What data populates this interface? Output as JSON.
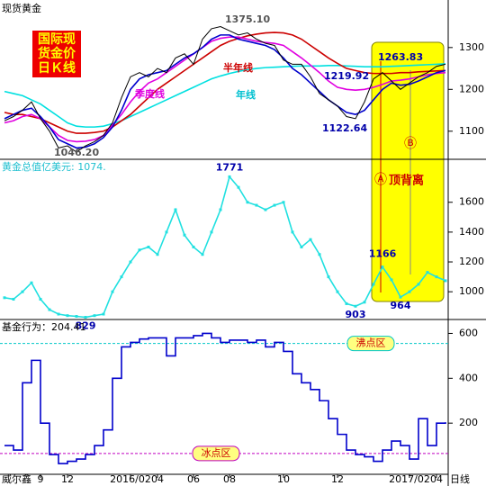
{
  "chart_data": [
    {
      "type": "line",
      "title": "现货黄金",
      "ylim": [
        1035,
        1405
      ],
      "yticks": [
        1100,
        1200,
        1300
      ],
      "series": [
        {
          "name": "年线",
          "color": "#00e0e0",
          "values": [
            1195,
            1190,
            1185,
            1175,
            1165,
            1150,
            1135,
            1120,
            1112,
            1110,
            1110,
            1112,
            1118,
            1125,
            1135,
            1145,
            1155,
            1165,
            1175,
            1185,
            1195,
            1205,
            1215,
            1225,
            1232,
            1238,
            1243,
            1247,
            1250,
            1252,
            1253,
            1254,
            1255,
            1256,
            1256,
            1256,
            1257,
            1257,
            1256,
            1255,
            1254,
            1254,
            1254,
            1255,
            1256,
            1257,
            1258,
            1259,
            1260,
            1261
          ]
        },
        {
          "name": "半年线",
          "color": "#cc0000",
          "values": [
            1145,
            1140,
            1140,
            1135,
            1130,
            1120,
            1110,
            1100,
            1095,
            1095,
            1097,
            1100,
            1110,
            1125,
            1140,
            1160,
            1180,
            1200,
            1215,
            1230,
            1245,
            1260,
            1275,
            1290,
            1305,
            1315,
            1322,
            1328,
            1332,
            1335,
            1336,
            1335,
            1330,
            1320,
            1305,
            1290,
            1275,
            1262,
            1250,
            1245,
            1240,
            1238,
            1238,
            1238,
            1240,
            1240,
            1242,
            1243,
            1244,
            1245
          ]
        },
        {
          "name": "季度线",
          "color": "#e000e0",
          "values": [
            1120,
            1125,
            1135,
            1140,
            1130,
            1110,
            1090,
            1078,
            1075,
            1076,
            1080,
            1090,
            1115,
            1140,
            1170,
            1195,
            1215,
            1225,
            1240,
            1255,
            1270,
            1285,
            1300,
            1315,
            1322,
            1325,
            1325,
            1320,
            1315,
            1312,
            1310,
            1305,
            1290,
            1275,
            1258,
            1240,
            1220,
            1205,
            1200,
            1198,
            1200,
            1205,
            1212,
            1220,
            1222,
            1225,
            1230,
            1235,
            1238,
            1240
          ]
        },
        {
          "color": "#0000cc",
          "values": [
            1130,
            1140,
            1150,
            1155,
            1135,
            1110,
            1080,
            1070,
            1060,
            1062,
            1070,
            1085,
            1110,
            1150,
            1200,
            1225,
            1235,
            1240,
            1245,
            1260,
            1275,
            1285,
            1300,
            1320,
            1330,
            1330,
            1320,
            1315,
            1310,
            1305,
            1295,
            1275,
            1250,
            1235,
            1215,
            1195,
            1175,
            1160,
            1145,
            1140,
            1150,
            1175,
            1200,
            1215,
            1210,
            1212,
            1220,
            1230,
            1240,
            1245
          ]
        },
        {
          "color": "#000000",
          "values": [
            1125,
            1135,
            1150,
            1170,
            1130,
            1100,
            1060,
            1065,
            1050,
            1065,
            1075,
            1090,
            1120,
            1180,
            1230,
            1240,
            1230,
            1250,
            1240,
            1275,
            1285,
            1260,
            1320,
            1345,
            1350,
            1340,
            1330,
            1335,
            1320,
            1310,
            1305,
            1270,
            1260,
            1260,
            1230,
            1190,
            1175,
            1160,
            1135,
            1130,
            1170,
            1225,
            1240,
            1220,
            1200,
            1215,
            1230,
            1240,
            1255,
            1260
          ]
        }
      ],
      "annotations": [
        "1375.10",
        "1046.20",
        "1122.64",
        "1219.92",
        "1263.83",
        "半年线",
        "季度线",
        "年线"
      ],
      "badge": [
        "国际现",
        "货金价",
        "日Ｋ线"
      ]
    },
    {
      "type": "line",
      "title": "黄金总值亿美元: 1074.",
      "ylim": [
        820,
        1870
      ],
      "yticks": [
        1000,
        1200,
        1400,
        1600
      ],
      "series": [
        {
          "color": "#20e0e0",
          "values": [
            960,
            950,
            1000,
            1060,
            950,
            880,
            850,
            840,
            835,
            829,
            840,
            850,
            1000,
            1100,
            1200,
            1280,
            1300,
            1250,
            1400,
            1550,
            1380,
            1300,
            1250,
            1400,
            1550,
            1771,
            1700,
            1600,
            1580,
            1550,
            1580,
            1600,
            1400,
            1300,
            1350,
            1250,
            1100,
            1000,
            920,
            903,
            930,
            1050,
            1166,
            1080,
            964,
            1000,
            1050,
            1130,
            1100,
            1074
          ]
        }
      ],
      "value_label_points": [
        9,
        25,
        39,
        42,
        44
      ]
    },
    {
      "type": "step",
      "title": "基金行为：204.41",
      "ylim": [
        -20,
        650
      ],
      "yticks": [
        200,
        400,
        600
      ],
      "categories": [
        null,
        null,
        null,
        null,
        "9",
        null,
        null,
        "12",
        null,
        null,
        null,
        null,
        null,
        null,
        "2016/02",
        null,
        null,
        "04",
        null,
        null,
        null,
        "06",
        null,
        null,
        null,
        "08",
        null,
        null,
        null,
        null,
        null,
        "10",
        null,
        null,
        null,
        null,
        null,
        "12",
        null,
        null,
        null,
        null,
        null,
        null,
        null,
        "2017/02",
        null,
        null,
        "04",
        null
      ],
      "series": [
        {
          "color": "#0000cc",
          "values": [
            100,
            80,
            380,
            480,
            200,
            60,
            20,
            30,
            40,
            60,
            100,
            170,
            400,
            540,
            560,
            575,
            580,
            580,
            500,
            580,
            580,
            590,
            600,
            580,
            560,
            570,
            570,
            560,
            570,
            540,
            560,
            520,
            420,
            380,
            350,
            300,
            220,
            150,
            80,
            60,
            50,
            30,
            80,
            120,
            100,
            40,
            220,
            100,
            200,
            204.41
          ]
        }
      ],
      "reference_lines": [
        {
          "value": 555,
          "label": "沸点区",
          "color": "#00c8c8"
        },
        {
          "value": 65,
          "label": "冰点区",
          "color": "#c000c0"
        }
      ]
    }
  ],
  "source": "威尔鑫",
  "period": "日线",
  "callouts": [
    "Ⓐ",
    "顶背离",
    "Ⓑ"
  ]
}
